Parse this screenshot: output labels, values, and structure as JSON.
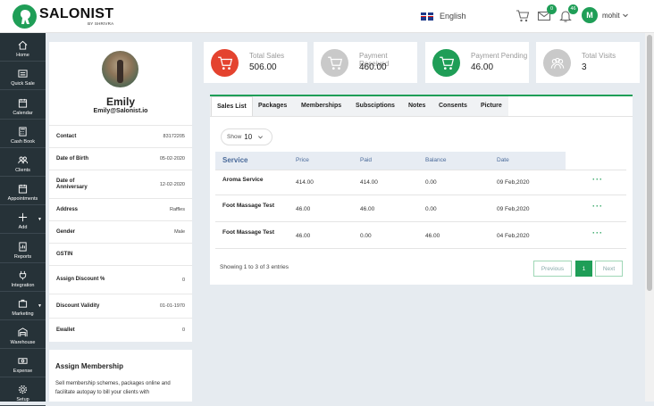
{
  "brand": {
    "name": "SALONIST",
    "sub": "BY SHRIVRA",
    "color": "#1f9e57"
  },
  "header": {
    "language": "English",
    "mail_badge": "0",
    "bell_badge": "46",
    "user_initial": "M",
    "user_name": "mohit"
  },
  "sidebar": {
    "items": [
      {
        "label": "Home",
        "icon": "home-icon"
      },
      {
        "label": "Quick Sale",
        "icon": "register-icon"
      },
      {
        "label": "Calendar",
        "icon": "calendar-icon"
      },
      {
        "label": "Cash Book",
        "icon": "calculator-icon"
      },
      {
        "label": "Clients",
        "icon": "users-icon"
      },
      {
        "label": "Appointments",
        "icon": "calendar-check-icon"
      },
      {
        "label": "Add",
        "icon": "plus-icon"
      },
      {
        "label": "Reports",
        "icon": "report-icon"
      },
      {
        "label": "Integration",
        "icon": "plug-icon"
      },
      {
        "label": "Marketing",
        "icon": "megaphone-icon"
      },
      {
        "label": "Warehouse",
        "icon": "warehouse-icon"
      },
      {
        "label": "Expense",
        "icon": "money-icon"
      },
      {
        "label": "Setup",
        "icon": "gear-icon"
      }
    ]
  },
  "profile": {
    "name": "Emily",
    "email": "Emily@Salonist.io",
    "fields": [
      {
        "label": "Contact",
        "value": "83172205"
      },
      {
        "label": "Date of Birth",
        "value": "05-02-2020"
      },
      {
        "label": "Date of Anniversary",
        "value": "12-02-2020"
      },
      {
        "label": "Address",
        "value": "Raffles"
      },
      {
        "label": "Gender",
        "value": "Male"
      },
      {
        "label": "GSTIN",
        "value": ""
      },
      {
        "label": "Assign Discount %",
        "value": "0"
      },
      {
        "label": "Discount Validity",
        "value": "01-01-1970"
      },
      {
        "label": "Ewallet",
        "value": "0"
      }
    ]
  },
  "membership": {
    "title": "Assign Membership",
    "description": "Sell membership schemes, packages online and facilitate autopay to bill your clients with"
  },
  "stats": [
    {
      "label": "Total Sales",
      "value": "506.00",
      "color": "#e4432f"
    },
    {
      "label": "Payment Received",
      "value": "460.00",
      "color": "#c9c9c9"
    },
    {
      "label": "Payment Pending",
      "value": "46.00",
      "color": "#1f9e57"
    },
    {
      "label": "Total Visits",
      "value": "3",
      "color": "#c9c9c9"
    }
  ],
  "tabs": [
    "Sales List",
    "Packages",
    "Memberships",
    "Subsciptions",
    "Notes",
    "Consents",
    "Picture"
  ],
  "table": {
    "show_label": "Show",
    "show_value": "10",
    "columns": [
      "Service",
      "Price",
      "Paid",
      "Balance",
      "Date"
    ],
    "rows": [
      {
        "service": "Aroma Service",
        "price": "414.00",
        "paid": "414.00",
        "balance": "0.00",
        "date": "09 Feb,2020",
        "action": "···"
      },
      {
        "service": "Foot Massage Test",
        "price": "46.00",
        "paid": "46.00",
        "balance": "0.00",
        "date": "09 Feb,2020",
        "action": "···"
      },
      {
        "service": "Foot Massage Test",
        "price": "46.00",
        "paid": "0.00",
        "balance": "46.00",
        "date": "04 Feb,2020",
        "action": "···"
      }
    ],
    "showing": "Showing 1 to 3 of 3 entries",
    "pagination": {
      "previous": "Previous",
      "current": "1",
      "next": "Next"
    }
  }
}
